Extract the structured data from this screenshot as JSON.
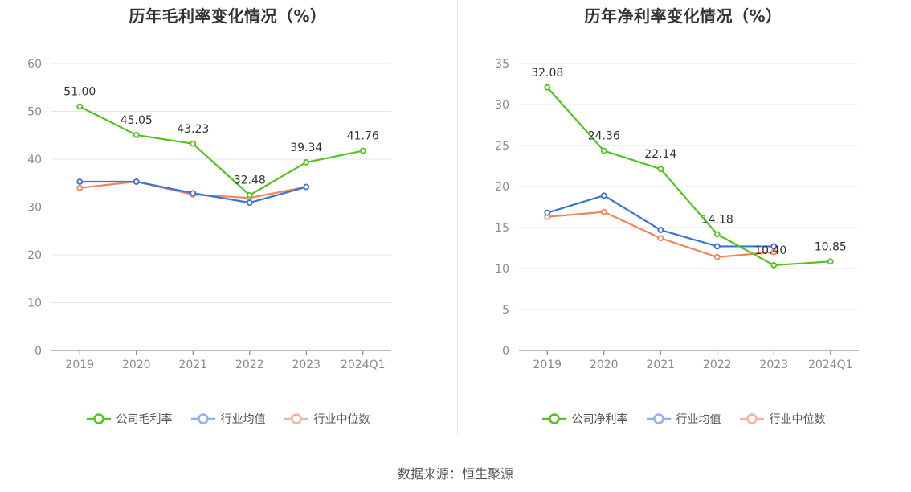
{
  "source_text": "数据来源：恒生聚源",
  "chart_data": [
    {
      "type": "line",
      "title": "历年毛利率变化情况（%）",
      "categories": [
        "2019",
        "2020",
        "2021",
        "2022",
        "2023",
        "2024Q1"
      ],
      "ylim": [
        0,
        60
      ],
      "yticks": [
        "0",
        "10",
        "20",
        "30",
        "40",
        "50",
        "60"
      ],
      "grid": true,
      "legend_position": "bottom",
      "series": [
        {
          "name": "公司毛利率",
          "color": "#52c41a",
          "values": [
            51.0,
            45.05,
            43.23,
            32.48,
            39.34,
            41.76
          ],
          "labels": [
            "51.00",
            "45.05",
            "43.23",
            "32.48",
            "39.34",
            "41.76"
          ]
        },
        {
          "name": "行业均值",
          "color": "#3b73d9",
          "values": [
            35.3,
            35.3,
            32.9,
            30.9,
            34.2,
            null
          ]
        },
        {
          "name": "行业中位数",
          "color": "#f0855a",
          "values": [
            34.0,
            35.3,
            32.6,
            31.9,
            34.2,
            null
          ]
        }
      ]
    },
    {
      "type": "line",
      "title": "历年净利率变化情况（%）",
      "categories": [
        "2019",
        "2020",
        "2021",
        "2022",
        "2023",
        "2024Q1"
      ],
      "ylim": [
        0,
        35
      ],
      "yticks": [
        "0",
        "5",
        "10",
        "15",
        "20",
        "25",
        "30",
        "35"
      ],
      "grid": true,
      "legend_position": "bottom",
      "series": [
        {
          "name": "公司净利率",
          "color": "#52c41a",
          "values": [
            32.08,
            24.36,
            22.14,
            14.18,
            10.4,
            10.85
          ],
          "labels": [
            "32.08",
            "24.36",
            "22.14",
            "14.18",
            "10.40",
            "10.85"
          ]
        },
        {
          "name": "行业均值",
          "color": "#3b73d9",
          "values": [
            16.8,
            18.9,
            14.7,
            12.7,
            12.7,
            null
          ]
        },
        {
          "name": "行业中位数",
          "color": "#f0855a",
          "values": [
            16.3,
            16.9,
            13.7,
            11.4,
            12.0,
            null
          ]
        }
      ]
    }
  ]
}
